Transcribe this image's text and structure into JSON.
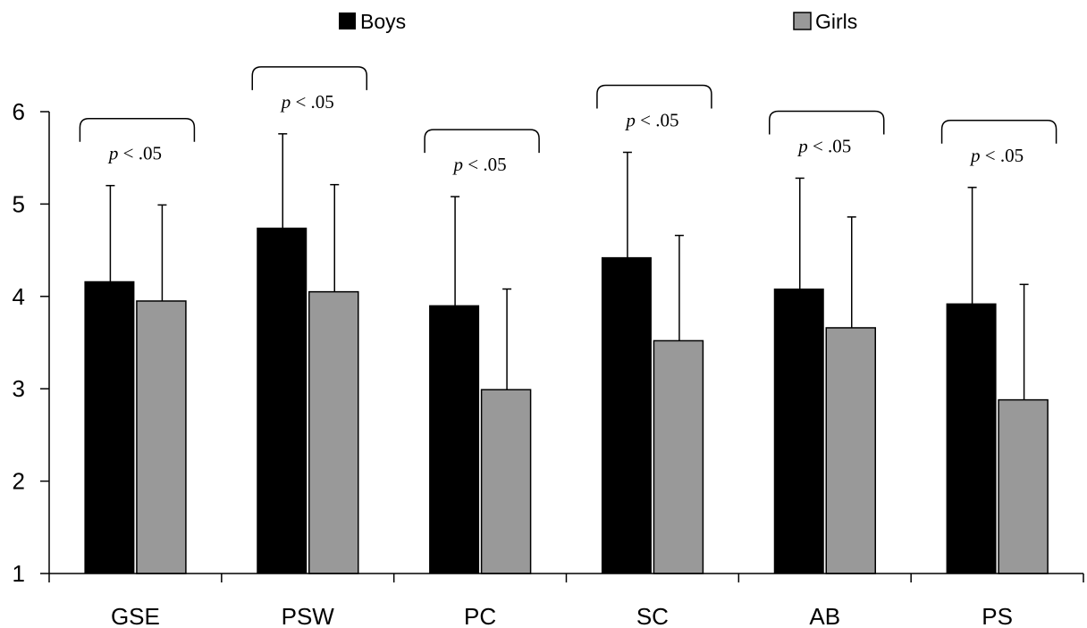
{
  "colors": {
    "boys": "#000000",
    "girls": "#999999",
    "axis": "#000000"
  },
  "chart_data": {
    "type": "bar",
    "title": "",
    "xlabel": "",
    "ylabel": "",
    "ylim": [
      1,
      6
    ],
    "yticks": [
      "1",
      "2",
      "3",
      "4",
      "5",
      "6"
    ],
    "categories": [
      "GSE",
      "PSW",
      "PC",
      "SC",
      "AB",
      "PS"
    ],
    "legend_position": "top",
    "grid": false,
    "series": [
      {
        "name": "Boys",
        "values": [
          4.16,
          4.74,
          3.9,
          4.42,
          4.08,
          3.92
        ],
        "error": [
          1.04,
          1.02,
          1.18,
          1.14,
          1.2,
          1.26
        ]
      },
      {
        "name": "Girls",
        "values": [
          3.95,
          4.05,
          2.99,
          3.52,
          3.66,
          2.88
        ],
        "error": [
          1.04,
          1.16,
          1.09,
          1.14,
          1.2,
          1.25
        ]
      }
    ],
    "annotations": [
      {
        "category": "GSE",
        "text_p": "p",
        "text_rest": " < .05"
      },
      {
        "category": "PSW",
        "text_p": "p",
        "text_rest": " < .05"
      },
      {
        "category": "PC",
        "text_p": "p",
        "text_rest": " < .05"
      },
      {
        "category": "SC",
        "text_p": "p",
        "text_rest": " < .05"
      },
      {
        "category": "AB",
        "text_p": "p",
        "text_rest": " < .05"
      },
      {
        "category": "PS",
        "text_p": "p",
        "text_rest": " < .05"
      }
    ]
  }
}
